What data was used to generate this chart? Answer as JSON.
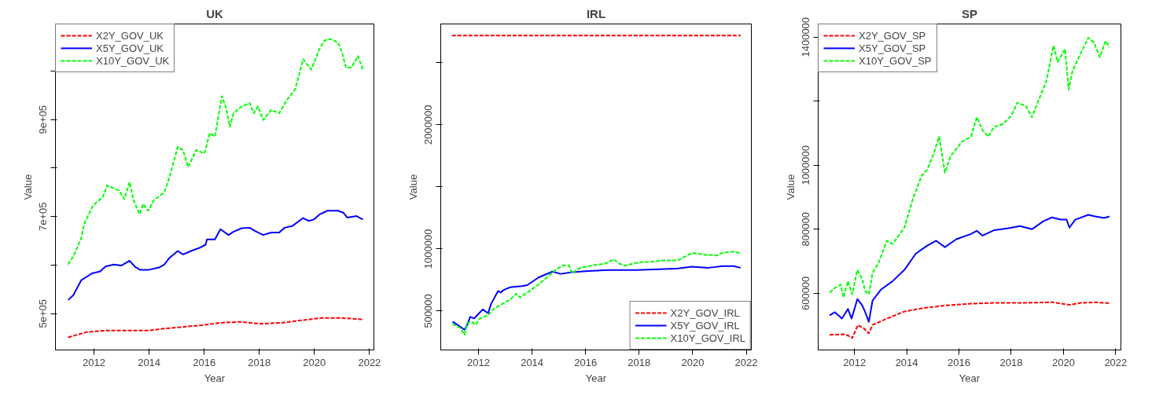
{
  "chart_data": [
    {
      "type": "line",
      "title": "UK",
      "xlabel": "Year",
      "ylabel": "Value",
      "xlim": [
        2010.6,
        2022.16
      ],
      "ylim": [
        425000,
        1097000
      ],
      "xticks": [
        2012,
        2014,
        2016,
        2018,
        2020,
        2022
      ],
      "yticks": [
        {
          "value": 500000,
          "label": "5e+05"
        },
        {
          "value": 600000,
          "label": null
        },
        {
          "value": 700000,
          "label": "7e+05"
        },
        {
          "value": 800000,
          "label": null
        },
        {
          "value": 900000,
          "label": "9e+05"
        },
        {
          "value": 1000000,
          "label": null
        }
      ],
      "grid": false,
      "legend": "top left",
      "marker": "none",
      "series": [
        {
          "name": "X2Y_GOV_UK",
          "color": "#ff0000",
          "line_style": "dashed",
          "x": [
            2011.06,
            2011.74,
            2012.42,
            2013.19,
            2013.97,
            2014.55,
            2015.13,
            2015.91,
            2016.59,
            2017.27,
            2018.04,
            2018.82,
            2019.5,
            2020.27,
            2020.95,
            2021.76
          ],
          "values": [
            451000,
            462000,
            465000,
            465000,
            465000,
            469000,
            472000,
            476000,
            481000,
            483000,
            479000,
            481000,
            486000,
            491000,
            491000,
            488000
          ]
        },
        {
          "name": "X5Y_GOV_UK",
          "color": "#0000ff",
          "line_style": "solid",
          "x": [
            2011.06,
            2011.25,
            2011.54,
            2011.74,
            2011.93,
            2012.22,
            2012.42,
            2012.71,
            2012.99,
            2013.29,
            2013.48,
            2013.68,
            2013.97,
            2014.36,
            2014.55,
            2014.74,
            2015.04,
            2015.23,
            2015.52,
            2015.81,
            2016.05,
            2016.1,
            2016.39,
            2016.59,
            2016.88,
            2017.07,
            2017.36,
            2017.65,
            2017.85,
            2018.14,
            2018.43,
            2018.72,
            2018.92,
            2019.21,
            2019.59,
            2019.79,
            2019.98,
            2020.18,
            2020.47,
            2020.86,
            2021.05,
            2021.19,
            2021.53,
            2021.76
          ],
          "values": [
            528000,
            538000,
            569000,
            576000,
            583000,
            587000,
            597000,
            601000,
            599000,
            609000,
            597000,
            590000,
            590000,
            595000,
            601000,
            615000,
            629000,
            622000,
            629000,
            635000,
            642000,
            653000,
            653000,
            674000,
            662000,
            669000,
            676000,
            677000,
            670000,
            662000,
            667000,
            667000,
            677000,
            681000,
            697000,
            691000,
            694000,
            704000,
            712000,
            712000,
            708000,
            698000,
            701000,
            694000
          ]
        },
        {
          "name": "X10Y_GOV_UK",
          "color": "#00ff00",
          "line_style": "dashed",
          "x": [
            2011.06,
            2011.25,
            2011.54,
            2011.64,
            2011.93,
            2012.08,
            2012.32,
            2012.47,
            2012.9,
            2013.1,
            2013.29,
            2013.44,
            2013.66,
            2013.78,
            2013.97,
            2014.16,
            2014.55,
            2014.74,
            2015.04,
            2015.23,
            2015.42,
            2015.71,
            2016.01,
            2016.2,
            2016.39,
            2016.64,
            2016.78,
            2016.93,
            2017.07,
            2017.36,
            2017.65,
            2017.8,
            2017.95,
            2018.14,
            2018.43,
            2018.72,
            2019.01,
            2019.3,
            2019.59,
            2019.89,
            2020.18,
            2020.37,
            2020.56,
            2020.86,
            2021.0,
            2021.15,
            2021.34,
            2021.58,
            2021.76
          ],
          "values": [
            601000,
            618000,
            656000,
            684000,
            719000,
            729000,
            740000,
            764000,
            754000,
            736000,
            771000,
            733000,
            705000,
            726000,
            712000,
            733000,
            750000,
            781000,
            844000,
            837000,
            802000,
            837000,
            830000,
            872000,
            865000,
            948000,
            927000,
            885000,
            913000,
            927000,
            934000,
            913000,
            927000,
            899000,
            920000,
            913000,
            941000,
            962000,
            1024000,
            1003000,
            1045000,
            1063000,
            1066000,
            1059000,
            1038000,
            1007000,
            1007000,
            1031000,
            1003000
          ]
        }
      ]
    },
    {
      "type": "line",
      "title": "IRL",
      "xlabel": "Year",
      "ylabel": "Value",
      "xlim": [
        2010.59,
        2022.19
      ],
      "ylim": [
        186000,
        2812000
      ],
      "xticks": [
        2012,
        2014,
        2016,
        2018,
        2020,
        2022
      ],
      "yticks": [
        500000,
        1000000,
        {
          "value": 1500000,
          "label": null
        },
        2000000,
        {
          "value": 2500000,
          "label": null
        }
      ],
      "grid": false,
      "legend": "bottom right",
      "marker": "none",
      "series": [
        {
          "name": "X2Y_GOV_IRL",
          "color": "#ff0000",
          "line_style": "dashed",
          "x": [
            2011.01,
            2021.79
          ],
          "values": [
            2718000,
            2718000
          ]
        },
        {
          "name": "X5Y_GOV_IRL",
          "color": "#0000ff",
          "line_style": "solid",
          "x": [
            2011.03,
            2011.22,
            2011.48,
            2011.58,
            2011.69,
            2011.84,
            2011.95,
            2012.16,
            2012.36,
            2012.47,
            2012.73,
            2012.83,
            2012.89,
            2012.99,
            2013.2,
            2013.61,
            2013.82,
            2014.24,
            2014.76,
            2015.07,
            2015.49,
            2016.11,
            2016.84,
            2017.89,
            2018.93,
            2019.45,
            2019.97,
            2020.59,
            2021.11,
            2021.53,
            2021.79
          ],
          "values": [
            414000,
            388000,
            349000,
            388000,
            453000,
            440000,
            466000,
            513000,
            482000,
            557000,
            661000,
            648000,
            661000,
            674000,
            692000,
            700000,
            708000,
            770000,
            817000,
            799000,
            812000,
            822000,
            830000,
            830000,
            838000,
            843000,
            856000,
            848000,
            861000,
            861000,
            848000
          ]
        },
        {
          "name": "X10Y_GOV_IRL",
          "color": "#00ff00",
          "line_style": "dashed",
          "x": [
            2011.03,
            2011.32,
            2011.48,
            2011.58,
            2011.74,
            2011.9,
            2012.05,
            2012.36,
            2012.57,
            2012.89,
            2013.2,
            2013.41,
            2013.56,
            2013.82,
            2014.24,
            2014.66,
            2014.92,
            2015.18,
            2015.39,
            2015.49,
            2015.8,
            2016.32,
            2016.74,
            2017.05,
            2017.26,
            2017.47,
            2017.78,
            2018.09,
            2018.41,
            2018.93,
            2019.45,
            2019.97,
            2020.49,
            2020.7,
            2020.91,
            2021.11,
            2021.53,
            2021.79
          ],
          "values": [
            396000,
            362000,
            310000,
            401000,
            414000,
            388000,
            440000,
            466000,
            518000,
            557000,
            596000,
            640000,
            609000,
            648000,
            713000,
            791000,
            838000,
            869000,
            864000,
            804000,
            848000,
            869000,
            882000,
            916000,
            882000,
            864000,
            882000,
            895000,
            895000,
            908000,
            908000,
            968000,
            952000,
            952000,
            947000,
            968000,
            978000,
            965000
          ]
        }
      ]
    },
    {
      "type": "line",
      "title": "SP",
      "xlabel": "Year",
      "ylabel": "Value",
      "xlim": [
        2010.61,
        2022.2
      ],
      "ylim": [
        423000,
        1441000
      ],
      "xticks": [
        2012,
        2014,
        2016,
        2018,
        2020,
        2022
      ],
      "yticks": [
        600000,
        800000,
        1000000,
        {
          "value": 1200000,
          "label": null
        },
        1400000
      ],
      "grid": false,
      "legend": "top left",
      "marker": "none",
      "series": [
        {
          "name": "X2Y_GOV_SP",
          "color": "#ff0000",
          "line_style": "dashed",
          "x": [
            2011.05,
            2011.58,
            2011.86,
            2011.91,
            2012.13,
            2012.35,
            2012.55,
            2012.69,
            2013.24,
            2013.91,
            2014.57,
            2015.46,
            2016.35,
            2017.34,
            2018.45,
            2019.56,
            2020.23,
            2020.67,
            2021.22,
            2021.76
          ],
          "values": [
            470000,
            472000,
            465000,
            460000,
            501000,
            491000,
            475000,
            501000,
            521000,
            543000,
            553000,
            562000,
            567000,
            570000,
            570000,
            572000,
            564000,
            570000,
            572000,
            569000
          ]
        },
        {
          "name": "X5Y_GOV_SP",
          "color": "#0000ff",
          "line_style": "solid",
          "x": [
            2011.05,
            2011.25,
            2011.52,
            2011.75,
            2011.89,
            2012.11,
            2012.3,
            2012.41,
            2012.55,
            2012.69,
            2013.02,
            2013.46,
            2013.91,
            2014.35,
            2014.79,
            2015.13,
            2015.46,
            2015.9,
            2016.46,
            2016.68,
            2016.9,
            2017.34,
            2017.9,
            2018.34,
            2018.79,
            2019.23,
            2019.56,
            2019.89,
            2020.12,
            2020.23,
            2020.45,
            2020.95,
            2021.22,
            2021.56,
            2021.76
          ],
          "values": [
            531000,
            541000,
            521000,
            551000,
            521000,
            582000,
            562000,
            541000,
            511000,
            577000,
            612000,
            638000,
            673000,
            724000,
            749000,
            764000,
            744000,
            769000,
            785000,
            795000,
            780000,
            797000,
            803000,
            810000,
            800000,
            825000,
            837000,
            830000,
            830000,
            805000,
            830000,
            845000,
            840000,
            835000,
            840000
          ]
        },
        {
          "name": "X10Y_GOV_SP",
          "color": "#00ff00",
          "line_style": "dashed",
          "x": [
            2011.05,
            2011.25,
            2011.47,
            2011.58,
            2011.75,
            2011.91,
            2012.11,
            2012.3,
            2012.41,
            2012.55,
            2012.69,
            2012.91,
            2013.24,
            2013.46,
            2013.91,
            2014.24,
            2014.57,
            2014.79,
            2015.02,
            2015.24,
            2015.46,
            2015.68,
            2016.12,
            2016.46,
            2016.68,
            2016.9,
            2017.12,
            2017.34,
            2017.68,
            2018.01,
            2018.23,
            2018.56,
            2018.79,
            2019.01,
            2019.34,
            2019.62,
            2019.78,
            2020.06,
            2020.2,
            2020.34,
            2020.56,
            2020.95,
            2021.17,
            2021.39,
            2021.61,
            2021.76
          ],
          "values": [
            602000,
            617000,
            627000,
            587000,
            638000,
            597000,
            673000,
            643000,
            607000,
            597000,
            663000,
            693000,
            764000,
            754000,
            805000,
            896000,
            967000,
            987000,
            1033000,
            1089000,
            977000,
            1028000,
            1074000,
            1089000,
            1150000,
            1109000,
            1089000,
            1119000,
            1129000,
            1155000,
            1195000,
            1185000,
            1150000,
            1195000,
            1261000,
            1373000,
            1322000,
            1363000,
            1236000,
            1292000,
            1332000,
            1398000,
            1383000,
            1337000,
            1388000,
            1368000
          ]
        }
      ]
    }
  ]
}
